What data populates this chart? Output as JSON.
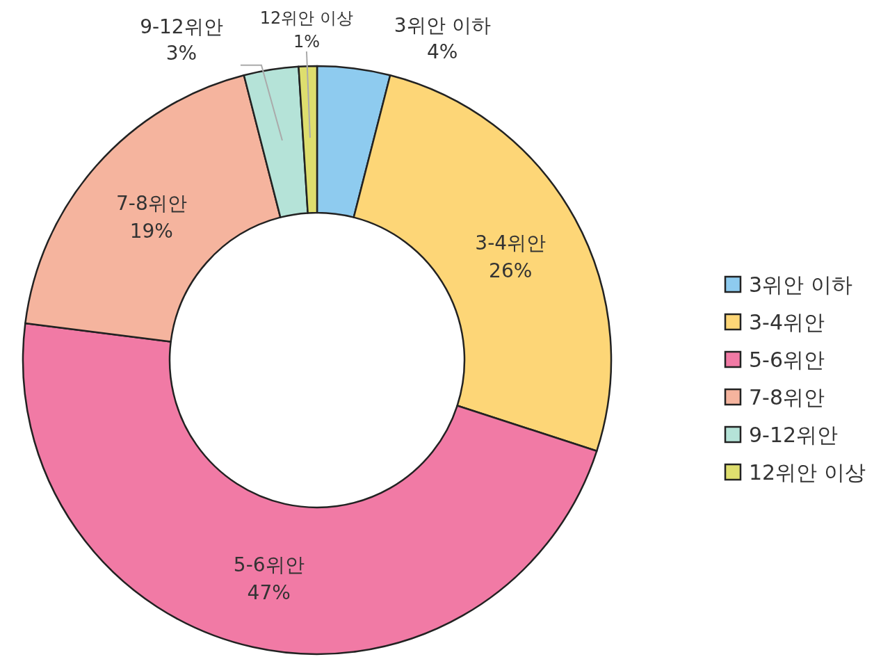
{
  "chart_data": {
    "type": "donut",
    "categories": [
      "3위안 이하",
      "3-4위안",
      "5-6위안",
      "7-8위안",
      "9-12위안",
      "12위안 이상"
    ],
    "values": [
      4,
      26,
      47,
      19,
      3,
      1
    ],
    "value_labels": [
      "4%",
      "26%",
      "47%",
      "19%",
      "3%",
      "1%"
    ],
    "colors": [
      "#8ecbef",
      "#fdd677",
      "#f17aa5",
      "#f5b49e",
      "#b5e3d8",
      "#dede6e"
    ],
    "legend": "right"
  }
}
